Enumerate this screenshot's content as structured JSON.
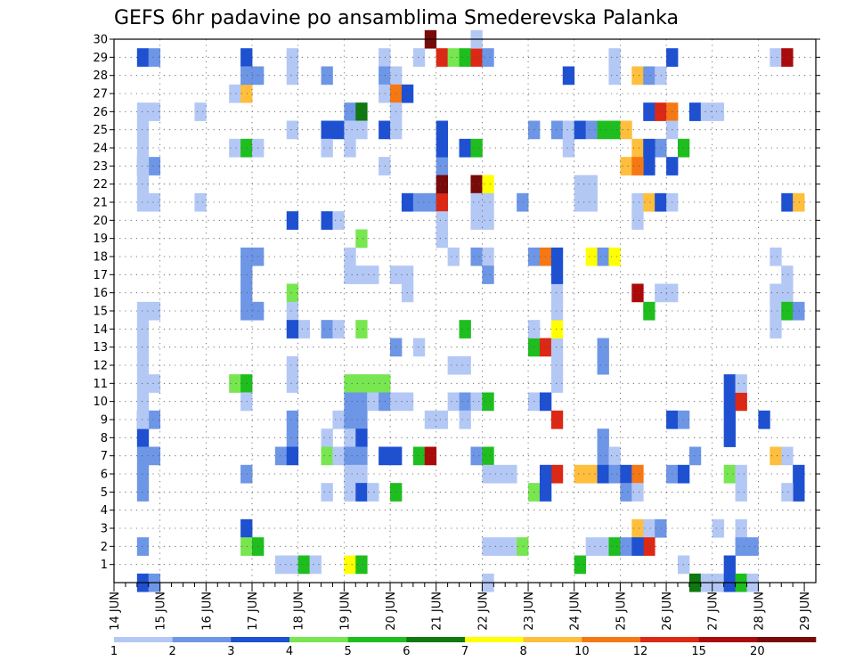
{
  "chart_data": {
    "type": "heatmap",
    "title": "GEFS 6hr padavine po ansamblima Smederevska Palanka",
    "xlabel": "",
    "ylabel": "",
    "x_tick_labels": [
      "14 JUN",
      "15 JUN",
      "16 JUN",
      "17 JUN",
      "18 JUN",
      "19 JUN",
      "20 JUN",
      "21 JUN",
      "22 JUN",
      "23 JUN",
      "24 JUN",
      "25 JUN",
      "26 JUN",
      "27 JUN",
      "28 JUN",
      "29 JUN"
    ],
    "x_steps": 61,
    "steps_per_day": 4,
    "y_tick_labels": [
      "1",
      "2",
      "3",
      "4",
      "5",
      "6",
      "7",
      "8",
      "9",
      "10",
      "11",
      "12",
      "13",
      "14",
      "15",
      "16",
      "17",
      "18",
      "19",
      "20",
      "21",
      "22",
      "23",
      "24",
      "25",
      "26",
      "27",
      "28",
      "29",
      "30"
    ],
    "y_range": [
      0,
      30
    ],
    "grid": true,
    "colorbar": {
      "labels": [
        "1",
        "2",
        "3",
        "4",
        "5",
        "6",
        "7",
        "8",
        "10",
        "12",
        "15",
        "20"
      ],
      "colors": [
        "#b4c8f5",
        "#6e96e6",
        "#1e50d2",
        "#78e650",
        "#1ebe1e",
        "#0f780f",
        "#ffff00",
        "#ffbe3c",
        "#f57814",
        "#dc2814",
        "#aa0a0a",
        "#780a0a"
      ]
    },
    "cells": [
      [
        2,
        29,
        2
      ],
      [
        3,
        29,
        1
      ],
      [
        2,
        23,
        1
      ],
      [
        3,
        23,
        1
      ],
      [
        2,
        21,
        0
      ],
      [
        3,
        21,
        0
      ],
      [
        2,
        9,
        2
      ],
      [
        3,
        9,
        1
      ],
      [
        2,
        8,
        2
      ],
      [
        2,
        7,
        1
      ],
      [
        3,
        7,
        1
      ],
      [
        2,
        6,
        1
      ],
      [
        2,
        5,
        1
      ],
      [
        2,
        2,
        1
      ],
      [
        2,
        0,
        2
      ],
      [
        3,
        0,
        1
      ],
      [
        2,
        26,
        0
      ],
      [
        3,
        26,
        0
      ],
      [
        2,
        25,
        0
      ],
      [
        2,
        24,
        0
      ],
      [
        2,
        23,
        0
      ],
      [
        2,
        22,
        0
      ],
      [
        2,
        15,
        0
      ],
      [
        3,
        15,
        0
      ],
      [
        2,
        14,
        0
      ],
      [
        2,
        13,
        0
      ],
      [
        2,
        12,
        0
      ],
      [
        2,
        11,
        0
      ],
      [
        3,
        11,
        0
      ],
      [
        2,
        10,
        0
      ],
      [
        2,
        9,
        0
      ],
      [
        7,
        26,
        0
      ],
      [
        7,
        21,
        0
      ],
      [
        10,
        27,
        0
      ],
      [
        11,
        27,
        7
      ],
      [
        10,
        24,
        0
      ],
      [
        11,
        24,
        4
      ],
      [
        12,
        24,
        0
      ],
      [
        10,
        11,
        3
      ],
      [
        11,
        11,
        4
      ],
      [
        11,
        10,
        0
      ],
      [
        11,
        29,
        2
      ],
      [
        11,
        28,
        1
      ],
      [
        12,
        28,
        1
      ],
      [
        11,
        18,
        1
      ],
      [
        12,
        18,
        1
      ],
      [
        11,
        17,
        1
      ],
      [
        11,
        16,
        1
      ],
      [
        11,
        15,
        1
      ],
      [
        12,
        15,
        1
      ],
      [
        11,
        6,
        1
      ],
      [
        11,
        3,
        2
      ],
      [
        11,
        2,
        3
      ],
      [
        12,
        2,
        4
      ],
      [
        15,
        29,
        0
      ],
      [
        15,
        28,
        0
      ],
      [
        15,
        25,
        0
      ],
      [
        15,
        16,
        3
      ],
      [
        15,
        15,
        0
      ],
      [
        16,
        14,
        0
      ],
      [
        15,
        12,
        0
      ],
      [
        15,
        11,
        0
      ],
      [
        15,
        9,
        1
      ],
      [
        15,
        8,
        1
      ],
      [
        14,
        7,
        1
      ],
      [
        15,
        7,
        2
      ],
      [
        15,
        20,
        2
      ],
      [
        15,
        14,
        2
      ],
      [
        14,
        1,
        0
      ],
      [
        15,
        1,
        0
      ],
      [
        16,
        1,
        4
      ],
      [
        17,
        1,
        0
      ],
      [
        18,
        28,
        1
      ],
      [
        18,
        25,
        2
      ],
      [
        19,
        25,
        2
      ],
      [
        18,
        24,
        0
      ],
      [
        18,
        20,
        2
      ],
      [
        19,
        20,
        0
      ],
      [
        18,
        14,
        1
      ],
      [
        19,
        14,
        0
      ],
      [
        18,
        8,
        0
      ],
      [
        18,
        7,
        3
      ],
      [
        19,
        7,
        0
      ],
      [
        18,
        5,
        0
      ],
      [
        19,
        9,
        0
      ],
      [
        20,
        26,
        1
      ],
      [
        21,
        26,
        5
      ],
      [
        20,
        25,
        0
      ],
      [
        21,
        25,
        0
      ],
      [
        20,
        24,
        0
      ],
      [
        21,
        19,
        3
      ],
      [
        20,
        18,
        0
      ],
      [
        20,
        17,
        0
      ],
      [
        21,
        17,
        0
      ],
      [
        22,
        17,
        0
      ],
      [
        21,
        14,
        3
      ],
      [
        20,
        11,
        3
      ],
      [
        21,
        11,
        3
      ],
      [
        22,
        11,
        3
      ],
      [
        20,
        10,
        1
      ],
      [
        21,
        10,
        1
      ],
      [
        22,
        10,
        0
      ],
      [
        20,
        9,
        1
      ],
      [
        21,
        9,
        1
      ],
      [
        20,
        8,
        0
      ],
      [
        21,
        8,
        2
      ],
      [
        20,
        7,
        1
      ],
      [
        21,
        7,
        1
      ],
      [
        20,
        6,
        0
      ],
      [
        21,
        6,
        0
      ],
      [
        20,
        5,
        0
      ],
      [
        21,
        5,
        2
      ],
      [
        22,
        5,
        0
      ],
      [
        20,
        1,
        6
      ],
      [
        21,
        1,
        4
      ],
      [
        23,
        29,
        0
      ],
      [
        23,
        28,
        1
      ],
      [
        23,
        23,
        0
      ],
      [
        24,
        28,
        0
      ],
      [
        23,
        27,
        0
      ],
      [
        24,
        27,
        8
      ],
      [
        25,
        27,
        2
      ],
      [
        24,
        26,
        0
      ],
      [
        23,
        25,
        2
      ],
      [
        24,
        25,
        0
      ],
      [
        24,
        17,
        0
      ],
      [
        25,
        17,
        0
      ],
      [
        25,
        16,
        0
      ],
      [
        24,
        13,
        1
      ],
      [
        23,
        11,
        3
      ],
      [
        23,
        10,
        1
      ],
      [
        24,
        10,
        0
      ],
      [
        25,
        10,
        0
      ],
      [
        23,
        7,
        2
      ],
      [
        24,
        7,
        2
      ],
      [
        24,
        5,
        4
      ],
      [
        26,
        29,
        0
      ],
      [
        25,
        21,
        2
      ],
      [
        26,
        21,
        1
      ],
      [
        27,
        21,
        1
      ],
      [
        28,
        21,
        9
      ],
      [
        26,
        13,
        0
      ],
      [
        27,
        9,
        0
      ],
      [
        28,
        9,
        0
      ],
      [
        26,
        7,
        4
      ],
      [
        27,
        7,
        10
      ],
      [
        28,
        25,
        2
      ],
      [
        28,
        23,
        1
      ],
      [
        28,
        24,
        2
      ],
      [
        28,
        22,
        1
      ],
      [
        28,
        20,
        0
      ],
      [
        28,
        19,
        0
      ],
      [
        27,
        30,
        11
      ],
      [
        28,
        29,
        9
      ],
      [
        29,
        29,
        3
      ],
      [
        30,
        29,
        4
      ],
      [
        28,
        22,
        11
      ],
      [
        29,
        18,
        0
      ],
      [
        30,
        24,
        2
      ],
      [
        31,
        24,
        4
      ],
      [
        29,
        10,
        0
      ],
      [
        30,
        10,
        1
      ],
      [
        30,
        9,
        0
      ],
      [
        29,
        12,
        0
      ],
      [
        30,
        12,
        0
      ],
      [
        30,
        14,
        4
      ],
      [
        31,
        29,
        9
      ],
      [
        32,
        29,
        1
      ],
      [
        31,
        30,
        0
      ],
      [
        31,
        22,
        11
      ],
      [
        32,
        22,
        6
      ],
      [
        31,
        21,
        0
      ],
      [
        32,
        21,
        0
      ],
      [
        31,
        20,
        0
      ],
      [
        32,
        20,
        0
      ],
      [
        31,
        18,
        1
      ],
      [
        32,
        18,
        0
      ],
      [
        32,
        17,
        1
      ],
      [
        31,
        10,
        0
      ],
      [
        32,
        10,
        4
      ],
      [
        31,
        7,
        1
      ],
      [
        32,
        7,
        4
      ],
      [
        32,
        6,
        0
      ],
      [
        32,
        2,
        0
      ],
      [
        32,
        0,
        0
      ],
      [
        33,
        6,
        0
      ],
      [
        34,
        6,
        0
      ],
      [
        33,
        2,
        0
      ],
      [
        34,
        2,
        0
      ],
      [
        35,
        2,
        3
      ],
      [
        36,
        25,
        1
      ],
      [
        35,
        21,
        1
      ],
      [
        36,
        18,
        1
      ],
      [
        37,
        18,
        8
      ],
      [
        38,
        18,
        2
      ],
      [
        36,
        13,
        4
      ],
      [
        37,
        13,
        9
      ],
      [
        38,
        13,
        0
      ],
      [
        36,
        10,
        0
      ],
      [
        37,
        10,
        2
      ],
      [
        38,
        9,
        9
      ],
      [
        38,
        6,
        9
      ],
      [
        37,
        6,
        2
      ],
      [
        36,
        5,
        3
      ],
      [
        37,
        5,
        2
      ],
      [
        36,
        14,
        0
      ],
      [
        38,
        14,
        6
      ],
      [
        38,
        15,
        0
      ],
      [
        38,
        16,
        0
      ],
      [
        38,
        17,
        2
      ],
      [
        38,
        12,
        0
      ],
      [
        38,
        11,
        0
      ],
      [
        39,
        28,
        2
      ],
      [
        38,
        25,
        1
      ],
      [
        39,
        25,
        0
      ],
      [
        40,
        25,
        2
      ],
      [
        39,
        24,
        0
      ],
      [
        41,
        25,
        1
      ],
      [
        42,
        25,
        4
      ],
      [
        43,
        25,
        4
      ],
      [
        44,
        25,
        7
      ],
      [
        41,
        18,
        6
      ],
      [
        42,
        18,
        1
      ],
      [
        43,
        18,
        6
      ],
      [
        40,
        22,
        0
      ],
      [
        41,
        22,
        0
      ],
      [
        40,
        21,
        0
      ],
      [
        41,
        21,
        0
      ],
      [
        42,
        13,
        1
      ],
      [
        42,
        12,
        1
      ],
      [
        42,
        8,
        1
      ],
      [
        42,
        7,
        1
      ],
      [
        43,
        7,
        0
      ],
      [
        40,
        6,
        7
      ],
      [
        41,
        6,
        7
      ],
      [
        42,
        6,
        2
      ],
      [
        43,
        6,
        1
      ],
      [
        44,
        6,
        2
      ],
      [
        45,
        6,
        8
      ],
      [
        44,
        5,
        1
      ],
      [
        43,
        29,
        0
      ],
      [
        43,
        28,
        0
      ],
      [
        41,
        2,
        0
      ],
      [
        42,
        2,
        0
      ],
      [
        43,
        2,
        4
      ],
      [
        44,
        2,
        1
      ],
      [
        40,
        1,
        4
      ],
      [
        45,
        16,
        10
      ],
      [
        45,
        20,
        0
      ],
      [
        45,
        21,
        0
      ],
      [
        45,
        28,
        7
      ],
      [
        46,
        28,
        1
      ],
      [
        47,
        28,
        0
      ],
      [
        45,
        24,
        7
      ],
      [
        46,
        23,
        2
      ],
      [
        47,
        24,
        1
      ],
      [
        44,
        23,
        7
      ],
      [
        45,
        23,
        8
      ],
      [
        46,
        24,
        2
      ],
      [
        46,
        26,
        2
      ],
      [
        47,
        26,
        9
      ],
      [
        48,
        26,
        8
      ],
      [
        48,
        25,
        0
      ],
      [
        46,
        21,
        7
      ],
      [
        47,
        21,
        2
      ],
      [
        48,
        21,
        0
      ],
      [
        47,
        16,
        0
      ],
      [
        48,
        16,
        0
      ],
      [
        46,
        15,
        4
      ],
      [
        48,
        9,
        2
      ],
      [
        49,
        9,
        1
      ],
      [
        48,
        6,
        1
      ],
      [
        49,
        6,
        2
      ],
      [
        45,
        5,
        0
      ],
      [
        45,
        3,
        7
      ],
      [
        46,
        3,
        0
      ],
      [
        47,
        3,
        1
      ],
      [
        46,
        2,
        9
      ],
      [
        45,
        2,
        2
      ],
      [
        48,
        29,
        2
      ],
      [
        48,
        23,
        2
      ],
      [
        49,
        24,
        4
      ],
      [
        50,
        26,
        2
      ],
      [
        51,
        26,
        0
      ],
      [
        52,
        26,
        0
      ],
      [
        50,
        7,
        1
      ],
      [
        49,
        1,
        0
      ],
      [
        50,
        0,
        5
      ],
      [
        51,
        0,
        0
      ],
      [
        52,
        0,
        0
      ],
      [
        53,
        0,
        2
      ],
      [
        54,
        0,
        4
      ],
      [
        55,
        0,
        0
      ],
      [
        52,
        3,
        0
      ],
      [
        54,
        3,
        0
      ],
      [
        53,
        11,
        2
      ],
      [
        53,
        10,
        2
      ],
      [
        54,
        10,
        9
      ],
      [
        53,
        9,
        2
      ],
      [
        53,
        8,
        2
      ],
      [
        53,
        6,
        3
      ],
      [
        54,
        6,
        0
      ],
      [
        54,
        5,
        0
      ],
      [
        53,
        1,
        2
      ],
      [
        54,
        2,
        1
      ],
      [
        55,
        2,
        1
      ],
      [
        56,
        9,
        2
      ],
      [
        54,
        11,
        0
      ],
      [
        57,
        29,
        0
      ],
      [
        58,
        29,
        10
      ],
      [
        57,
        18,
        0
      ],
      [
        58,
        17,
        0
      ],
      [
        57,
        16,
        0
      ],
      [
        58,
        16,
        0
      ],
      [
        57,
        15,
        0
      ],
      [
        58,
        15,
        4
      ],
      [
        59,
        15,
        1
      ],
      [
        57,
        7,
        7
      ],
      [
        58,
        7,
        0
      ],
      [
        59,
        6,
        2
      ],
      [
        59,
        5,
        2
      ],
      [
        58,
        5,
        0
      ],
      [
        57,
        14,
        0
      ],
      [
        58,
        21,
        2
      ],
      [
        59,
        21,
        7
      ]
    ]
  }
}
